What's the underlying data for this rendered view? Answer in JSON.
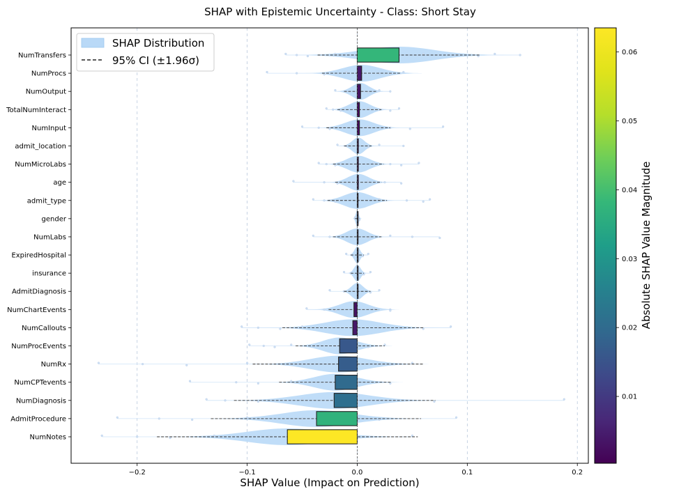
{
  "chart_data": {
    "type": "bar",
    "title": "SHAP with Epistemic Uncertainty - Class: Short Stay",
    "xlabel": "SHAP Value (Impact on Prediction)",
    "ylabel": "",
    "xlim": [
      -0.26,
      0.21
    ],
    "xticks": [
      -0.2,
      -0.1,
      0.0,
      0.1,
      0.2
    ],
    "xtick_labels": [
      "−0.2",
      "−0.1",
      "0.0",
      "0.1",
      "0.2"
    ],
    "grid": "vertical dashed",
    "legend": {
      "position": "top-left",
      "entries": [
        "SHAP Distribution",
        "95% CI (±1.96σ)"
      ]
    },
    "colorbar": {
      "label": "Absolute SHAP Value Magnitude",
      "colormap": "viridis",
      "range": [
        0.0003,
        0.0635
      ],
      "ticks": [
        0.01,
        0.02,
        0.03,
        0.04,
        0.05,
        0.06
      ],
      "tick_labels": [
        "0.01",
        "0.02",
        "0.03",
        "0.04",
        "0.05",
        "0.06"
      ]
    },
    "features": [
      {
        "name": "NumTransfers",
        "mean": 0.038,
        "ci": [
          -0.036,
          0.112
        ],
        "spread": 0.075,
        "pts": [
          -0.065,
          -0.055,
          -0.045,
          -0.02,
          0.0,
          0.03,
          0.06,
          0.09,
          0.11,
          0.125,
          0.148
        ]
      },
      {
        "name": "NumProcs",
        "mean": 0.004,
        "ci": [
          -0.032,
          0.04
        ],
        "spread": 0.04,
        "pts": [
          -0.082,
          -0.055,
          -0.03,
          -0.01,
          0.02,
          0.03,
          0.042
        ]
      },
      {
        "name": "NumOutput",
        "mean": 0.003,
        "ci": [
          -0.012,
          0.018
        ],
        "spread": 0.018,
        "pts": [
          -0.02,
          -0.01,
          0.01,
          0.02,
          0.03
        ]
      },
      {
        "name": "TotalNumInteract",
        "mean": 0.002,
        "ci": [
          -0.018,
          0.022
        ],
        "spread": 0.022,
        "pts": [
          -0.028,
          -0.022,
          -0.015,
          0.01,
          0.02,
          0.03,
          0.038
        ]
      },
      {
        "name": "NumInput",
        "mean": 0.002,
        "ci": [
          -0.028,
          0.03
        ],
        "spread": 0.03,
        "pts": [
          -0.05,
          -0.035,
          -0.025,
          0.01,
          0.03,
          0.048,
          0.078
        ]
      },
      {
        "name": "admit_location",
        "mean": 0.001,
        "ci": [
          -0.012,
          0.013
        ],
        "spread": 0.013,
        "pts": [
          -0.018,
          -0.01,
          0.01,
          0.02,
          0.042
        ]
      },
      {
        "name": "NumMicroLabs",
        "mean": 0.001,
        "ci": [
          -0.022,
          0.024
        ],
        "spread": 0.024,
        "pts": [
          -0.035,
          -0.028,
          -0.02,
          0.015,
          0.03,
          0.04,
          0.056
        ]
      },
      {
        "name": "age",
        "mean": 0.001,
        "ci": [
          -0.02,
          0.022
        ],
        "spread": 0.022,
        "pts": [
          -0.058,
          -0.03,
          -0.018,
          0.01,
          0.025,
          0.04
        ]
      },
      {
        "name": "admit_type",
        "mean": 0.0,
        "ci": [
          -0.027,
          0.027
        ],
        "spread": 0.028,
        "pts": [
          -0.04,
          -0.03,
          -0.02,
          0.02,
          0.045,
          0.06,
          0.066
        ]
      },
      {
        "name": "gender",
        "mean": 0.0,
        "ci": [
          -0.002,
          0.002
        ],
        "spread": 0.003,
        "pts": [
          -0.002,
          0.0,
          0.002
        ]
      },
      {
        "name": "NumLabs",
        "mean": 0.0,
        "ci": [
          -0.022,
          0.022
        ],
        "spread": 0.022,
        "pts": [
          -0.04,
          -0.025,
          0.01,
          0.03,
          0.05,
          0.075
        ]
      },
      {
        "name": "ExpiredHospital",
        "mean": 0.0,
        "ci": [
          -0.006,
          0.006
        ],
        "spread": 0.006,
        "pts": [
          -0.01,
          -0.005,
          0.005,
          0.01
        ]
      },
      {
        "name": "insurance",
        "mean": 0.0,
        "ci": [
          -0.006,
          0.006
        ],
        "spread": 0.007,
        "pts": [
          -0.012,
          -0.006,
          0.006,
          0.012
        ]
      },
      {
        "name": "AdmitDiagnosis",
        "mean": 0.0,
        "ci": [
          -0.012,
          0.012
        ],
        "spread": 0.012,
        "pts": [
          -0.025,
          -0.012,
          0.012,
          0.02
        ]
      },
      {
        "name": "NumChartEvents",
        "mean": -0.003,
        "ci": [
          -0.026,
          0.02
        ],
        "spread": 0.03,
        "pts": [
          -0.046,
          -0.03,
          -0.02,
          0.015,
          0.03,
          0.03
        ]
      },
      {
        "name": "NumCallouts",
        "mean": -0.004,
        "ci": [
          -0.068,
          0.06
        ],
        "spread": 0.06,
        "pts": [
          -0.105,
          -0.09,
          -0.07,
          -0.05,
          0.02,
          0.06,
          0.085
        ]
      },
      {
        "name": "NumProcEvents",
        "mean": -0.016,
        "ci": [
          -0.056,
          0.025
        ],
        "spread": 0.035,
        "pts": [
          -0.098,
          -0.085,
          -0.075,
          -0.06,
          -0.02,
          0.01,
          0.025
        ]
      },
      {
        "name": "NumRx",
        "mean": -0.017,
        "ci": [
          -0.095,
          0.06
        ],
        "spread": 0.06,
        "pts": [
          -0.235,
          -0.195,
          -0.155,
          -0.1,
          -0.06,
          0.0,
          0.05
        ]
      },
      {
        "name": "NumCPTevents",
        "mean": -0.02,
        "ci": [
          -0.071,
          0.031
        ],
        "spread": 0.045,
        "pts": [
          -0.152,
          -0.11,
          -0.09,
          -0.06,
          0.0,
          0.03
        ]
      },
      {
        "name": "NumDiagnosis",
        "mean": -0.021,
        "ci": [
          -0.112,
          0.071
        ],
        "spread": 0.075,
        "pts": [
          -0.137,
          -0.12,
          -0.09,
          -0.05,
          0.02,
          0.07,
          0.188
        ]
      },
      {
        "name": "AdmitProcedure",
        "mean": -0.037,
        "ci": [
          -0.133,
          0.058
        ],
        "spread": 0.075,
        "pts": [
          -0.218,
          -0.18,
          -0.15,
          -0.1,
          -0.05,
          0.02,
          0.09
        ]
      },
      {
        "name": "NumNotes",
        "mean": -0.0635,
        "ci": [
          -0.182,
          0.055
        ],
        "spread": 0.085,
        "pts": [
          -0.232,
          -0.2,
          -0.17,
          -0.13,
          -0.08,
          0.0,
          0.05
        ]
      }
    ]
  }
}
